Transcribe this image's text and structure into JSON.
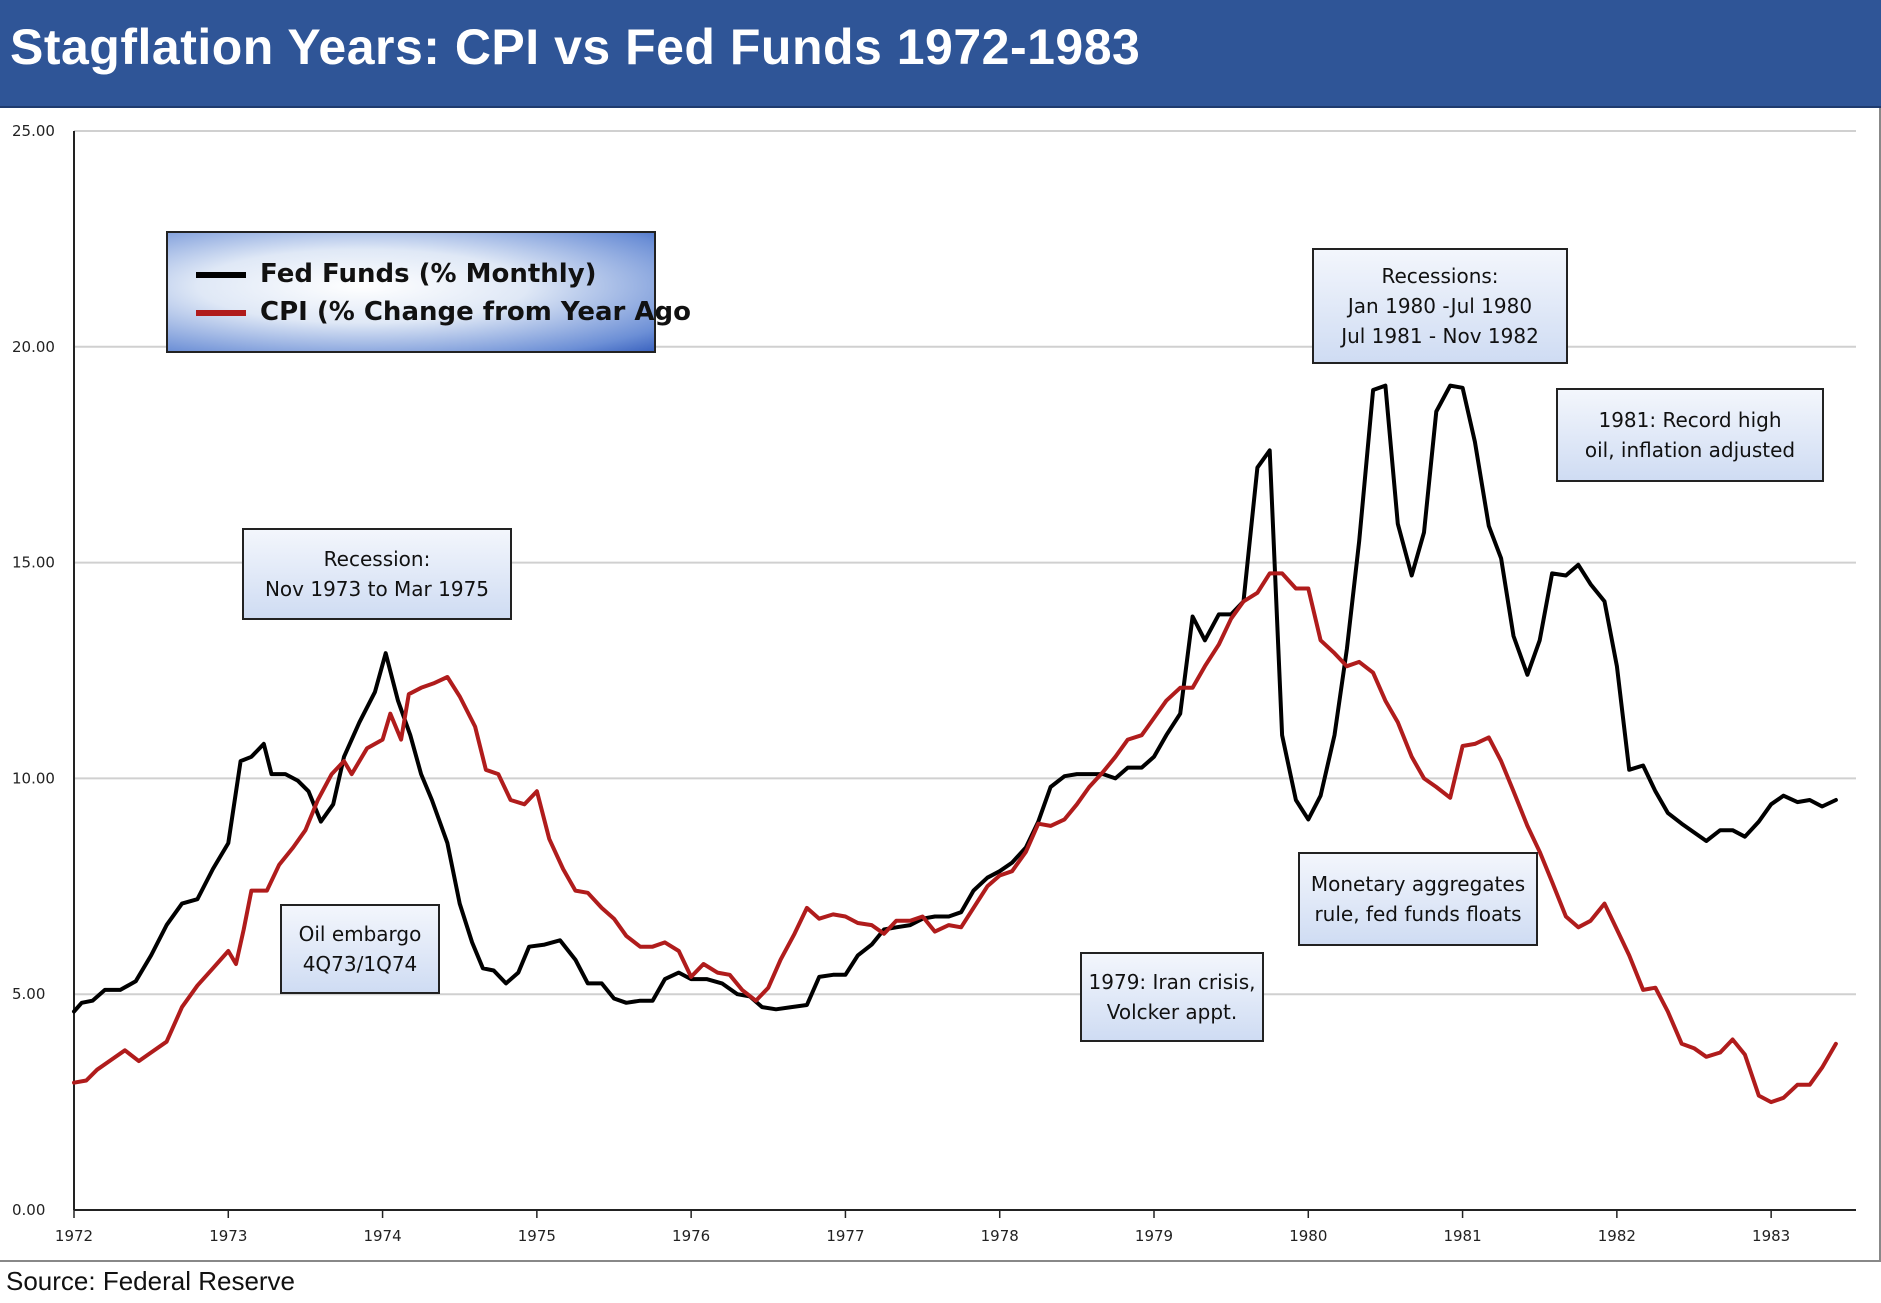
{
  "title": "Stagflation Years: CPI vs Fed Funds 1972-1983",
  "source": "Source: Federal Reserve",
  "colors": {
    "banner": "#2f5597",
    "fed_funds": "#000000",
    "cpi": "#b01c1c",
    "grid": "#d0d0d0"
  },
  "legend": {
    "fed_funds_label": "Fed Funds (% Monthly)",
    "cpi_label": "CPI (% Change from Year Ago"
  },
  "annotations": {
    "recession_1973": [
      "Recession:",
      "Nov 1973 to Mar 1975"
    ],
    "oil_embargo": [
      "Oil embargo",
      "4Q73/1Q74"
    ],
    "iran_crisis": [
      "1979: Iran crisis,",
      "Volcker appt."
    ],
    "recessions_1980": [
      "Recessions:",
      "Jan 1980 -Jul 1980",
      "Jul 1981 - Nov 1982"
    ],
    "record_oil": [
      "1981: Record high",
      "oil, inflation adjusted"
    ],
    "monetary": [
      "Monetary aggregates",
      "rule, fed funds floats"
    ]
  },
  "chart_data": {
    "type": "line",
    "ylim": [
      0,
      25
    ],
    "xlim": [
      1972,
      1983.55
    ],
    "y_ticks": [
      "0.00",
      "5.00",
      "10.00",
      "15.00",
      "20.00",
      "25.00"
    ],
    "x_ticks": [
      "1972",
      "1973",
      "1974",
      "1975",
      "1976",
      "1977",
      "1978",
      "1979",
      "1980",
      "1981",
      "1982",
      "1983"
    ],
    "grid": "horizontal",
    "legend_position": "top-left",
    "series": [
      {
        "name": "Fed Funds (% Monthly)",
        "color": "#000000",
        "points": [
          [
            1972.0,
            4.6
          ],
          [
            1972.05,
            4.8
          ],
          [
            1972.12,
            4.85
          ],
          [
            1972.2,
            5.1
          ],
          [
            1972.3,
            5.1
          ],
          [
            1972.4,
            5.3
          ],
          [
            1972.5,
            5.9
          ],
          [
            1972.6,
            6.6
          ],
          [
            1972.7,
            7.1
          ],
          [
            1972.8,
            7.2
          ],
          [
            1972.9,
            7.9
          ],
          [
            1973.0,
            8.5
          ],
          [
            1973.08,
            10.4
          ],
          [
            1973.15,
            10.5
          ],
          [
            1973.23,
            10.8
          ],
          [
            1973.28,
            10.1
          ],
          [
            1973.37,
            10.1
          ],
          [
            1973.45,
            9.95
          ],
          [
            1973.52,
            9.7
          ],
          [
            1973.6,
            9.0
          ],
          [
            1973.68,
            9.4
          ],
          [
            1973.75,
            10.5
          ],
          [
            1973.85,
            11.3
          ],
          [
            1973.95,
            12.0
          ],
          [
            1974.02,
            12.9
          ],
          [
            1974.1,
            11.8
          ],
          [
            1974.18,
            11.0
          ],
          [
            1974.25,
            10.1
          ],
          [
            1974.32,
            9.5
          ],
          [
            1974.42,
            8.5
          ],
          [
            1974.5,
            7.1
          ],
          [
            1974.58,
            6.2
          ],
          [
            1974.65,
            5.6
          ],
          [
            1974.72,
            5.55
          ],
          [
            1974.8,
            5.25
          ],
          [
            1974.88,
            5.5
          ],
          [
            1974.95,
            6.1
          ],
          [
            1975.05,
            6.15
          ],
          [
            1975.15,
            6.25
          ],
          [
            1975.25,
            5.8
          ],
          [
            1975.33,
            5.25
          ],
          [
            1975.42,
            5.25
          ],
          [
            1975.5,
            4.9
          ],
          [
            1975.58,
            4.8
          ],
          [
            1975.67,
            4.85
          ],
          [
            1975.75,
            4.85
          ],
          [
            1975.83,
            5.35
          ],
          [
            1975.92,
            5.5
          ],
          [
            1976.0,
            5.35
          ],
          [
            1976.1,
            5.35
          ],
          [
            1976.2,
            5.25
          ],
          [
            1976.3,
            5.0
          ],
          [
            1976.38,
            4.95
          ],
          [
            1976.46,
            4.7
          ],
          [
            1976.55,
            4.65
          ],
          [
            1976.65,
            4.7
          ],
          [
            1976.75,
            4.75
          ],
          [
            1976.83,
            5.4
          ],
          [
            1976.92,
            5.45
          ],
          [
            1977.0,
            5.45
          ],
          [
            1977.08,
            5.9
          ],
          [
            1977.17,
            6.15
          ],
          [
            1977.25,
            6.5
          ],
          [
            1977.33,
            6.55
          ],
          [
            1977.42,
            6.6
          ],
          [
            1977.5,
            6.75
          ],
          [
            1977.58,
            6.8
          ],
          [
            1977.67,
            6.8
          ],
          [
            1977.75,
            6.9
          ],
          [
            1977.83,
            7.4
          ],
          [
            1977.92,
            7.7
          ],
          [
            1978.0,
            7.85
          ],
          [
            1978.08,
            8.05
          ],
          [
            1978.17,
            8.4
          ],
          [
            1978.25,
            9.0
          ],
          [
            1978.33,
            9.8
          ],
          [
            1978.42,
            10.05
          ],
          [
            1978.5,
            10.1
          ],
          [
            1978.58,
            10.1
          ],
          [
            1978.67,
            10.1
          ],
          [
            1978.75,
            10.0
          ],
          [
            1978.83,
            10.25
          ],
          [
            1978.92,
            10.25
          ],
          [
            1979.0,
            10.5
          ],
          [
            1979.08,
            11.0
          ],
          [
            1979.17,
            11.5
          ],
          [
            1979.25,
            13.75
          ],
          [
            1979.33,
            13.2
          ],
          [
            1979.42,
            13.8
          ],
          [
            1979.5,
            13.8
          ],
          [
            1979.58,
            14.1
          ],
          [
            1979.67,
            17.2
          ],
          [
            1979.75,
            17.6
          ],
          [
            1979.83,
            11.0
          ],
          [
            1979.92,
            9.5
          ],
          [
            1980.0,
            9.05
          ],
          [
            1980.08,
            9.6
          ],
          [
            1980.17,
            11.0
          ],
          [
            1980.25,
            13.0
          ],
          [
            1980.33,
            15.5
          ],
          [
            1980.42,
            19.0
          ],
          [
            1980.5,
            19.1
          ],
          [
            1980.58,
            15.9
          ],
          [
            1980.67,
            14.7
          ],
          [
            1980.75,
            15.7
          ],
          [
            1980.83,
            18.5
          ],
          [
            1980.92,
            19.1
          ],
          [
            1981.0,
            19.05
          ],
          [
            1981.08,
            17.8
          ],
          [
            1981.17,
            15.85
          ],
          [
            1981.25,
            15.1
          ],
          [
            1981.33,
            13.3
          ],
          [
            1981.42,
            12.4
          ],
          [
            1981.5,
            13.2
          ],
          [
            1981.58,
            14.75
          ],
          [
            1981.67,
            14.7
          ],
          [
            1981.75,
            14.95
          ],
          [
            1981.83,
            14.5
          ],
          [
            1981.92,
            14.1
          ],
          [
            1982.0,
            12.6
          ],
          [
            1982.08,
            10.2
          ],
          [
            1982.17,
            10.3
          ],
          [
            1982.25,
            9.7
          ],
          [
            1982.33,
            9.2
          ],
          [
            1982.42,
            8.95
          ],
          [
            1982.5,
            8.75
          ],
          [
            1982.58,
            8.55
          ],
          [
            1982.67,
            8.8
          ],
          [
            1982.75,
            8.8
          ],
          [
            1982.83,
            8.65
          ],
          [
            1982.92,
            9.0
          ],
          [
            1983.0,
            9.4
          ],
          [
            1983.08,
            9.6
          ],
          [
            1983.17,
            9.45
          ],
          [
            1983.25,
            9.5
          ],
          [
            1983.33,
            9.35
          ],
          [
            1983.42,
            9.5
          ]
        ]
      },
      {
        "name": "CPI (% Change from Year Ago",
        "color": "#b01c1c",
        "points": [
          [
            1972.0,
            2.95
          ],
          [
            1972.08,
            3.0
          ],
          [
            1972.15,
            3.25
          ],
          [
            1972.25,
            3.5
          ],
          [
            1972.33,
            3.7
          ],
          [
            1972.42,
            3.45
          ],
          [
            1972.5,
            3.65
          ],
          [
            1972.6,
            3.9
          ],
          [
            1972.7,
            4.7
          ],
          [
            1972.8,
            5.2
          ],
          [
            1972.9,
            5.6
          ],
          [
            1973.0,
            6.0
          ],
          [
            1973.05,
            5.7
          ],
          [
            1973.1,
            6.5
          ],
          [
            1973.15,
            7.4
          ],
          [
            1973.25,
            7.4
          ],
          [
            1973.33,
            8.0
          ],
          [
            1973.42,
            8.4
          ],
          [
            1973.5,
            8.8
          ],
          [
            1973.58,
            9.5
          ],
          [
            1973.67,
            10.1
          ],
          [
            1973.75,
            10.4
          ],
          [
            1973.8,
            10.1
          ],
          [
            1973.9,
            10.7
          ],
          [
            1974.0,
            10.9
          ],
          [
            1974.05,
            11.5
          ],
          [
            1974.12,
            10.9
          ],
          [
            1974.17,
            11.95
          ],
          [
            1974.25,
            12.1
          ],
          [
            1974.33,
            12.2
          ],
          [
            1974.42,
            12.35
          ],
          [
            1974.5,
            11.9
          ],
          [
            1974.6,
            11.2
          ],
          [
            1974.67,
            10.2
          ],
          [
            1974.75,
            10.1
          ],
          [
            1974.83,
            9.5
          ],
          [
            1974.92,
            9.4
          ],
          [
            1975.0,
            9.7
          ],
          [
            1975.08,
            8.6
          ],
          [
            1975.17,
            7.9
          ],
          [
            1975.25,
            7.4
          ],
          [
            1975.33,
            7.35
          ],
          [
            1975.42,
            7.0
          ],
          [
            1975.5,
            6.75
          ],
          [
            1975.58,
            6.35
          ],
          [
            1975.67,
            6.1
          ],
          [
            1975.75,
            6.1
          ],
          [
            1975.83,
            6.2
          ],
          [
            1975.92,
            6.0
          ],
          [
            1976.0,
            5.4
          ],
          [
            1976.08,
            5.7
          ],
          [
            1976.17,
            5.5
          ],
          [
            1976.25,
            5.45
          ],
          [
            1976.33,
            5.1
          ],
          [
            1976.42,
            4.85
          ],
          [
            1976.5,
            5.15
          ],
          [
            1976.58,
            5.8
          ],
          [
            1976.67,
            6.4
          ],
          [
            1976.75,
            7.0
          ],
          [
            1976.83,
            6.75
          ],
          [
            1976.92,
            6.85
          ],
          [
            1977.0,
            6.8
          ],
          [
            1977.08,
            6.65
          ],
          [
            1977.17,
            6.6
          ],
          [
            1977.25,
            6.4
          ],
          [
            1977.33,
            6.7
          ],
          [
            1977.42,
            6.7
          ],
          [
            1977.5,
            6.8
          ],
          [
            1977.58,
            6.45
          ],
          [
            1977.67,
            6.6
          ],
          [
            1977.75,
            6.55
          ],
          [
            1977.83,
            7.0
          ],
          [
            1977.92,
            7.5
          ],
          [
            1978.0,
            7.75
          ],
          [
            1978.08,
            7.85
          ],
          [
            1978.17,
            8.3
          ],
          [
            1978.25,
            8.95
          ],
          [
            1978.33,
            8.9
          ],
          [
            1978.42,
            9.05
          ],
          [
            1978.5,
            9.4
          ],
          [
            1978.58,
            9.8
          ],
          [
            1978.67,
            10.15
          ],
          [
            1978.75,
            10.5
          ],
          [
            1978.83,
            10.9
          ],
          [
            1978.92,
            11.0
          ],
          [
            1979.0,
            11.4
          ],
          [
            1979.08,
            11.8
          ],
          [
            1979.17,
            12.1
          ],
          [
            1979.25,
            12.1
          ],
          [
            1979.33,
            12.6
          ],
          [
            1979.42,
            13.1
          ],
          [
            1979.5,
            13.7
          ],
          [
            1979.58,
            14.1
          ],
          [
            1979.67,
            14.3
          ],
          [
            1979.75,
            14.75
          ],
          [
            1979.83,
            14.75
          ],
          [
            1979.92,
            14.4
          ],
          [
            1980.0,
            14.4
          ],
          [
            1980.08,
            13.2
          ],
          [
            1980.17,
            12.9
          ],
          [
            1980.25,
            12.6
          ],
          [
            1980.33,
            12.7
          ],
          [
            1980.42,
            12.45
          ],
          [
            1980.5,
            11.8
          ],
          [
            1980.58,
            11.3
          ],
          [
            1980.67,
            10.5
          ],
          [
            1980.75,
            10.0
          ],
          [
            1980.83,
            9.8
          ],
          [
            1980.92,
            9.55
          ],
          [
            1981.0,
            10.75
          ],
          [
            1981.08,
            10.8
          ],
          [
            1981.17,
            10.95
          ],
          [
            1981.25,
            10.4
          ],
          [
            1981.33,
            9.7
          ],
          [
            1981.42,
            8.9
          ],
          [
            1981.5,
            8.3
          ],
          [
            1981.58,
            7.6
          ],
          [
            1981.67,
            6.8
          ],
          [
            1981.75,
            6.55
          ],
          [
            1981.83,
            6.7
          ],
          [
            1981.92,
            7.1
          ],
          [
            1982.0,
            6.5
          ],
          [
            1982.08,
            5.9
          ],
          [
            1982.17,
            5.1
          ],
          [
            1982.25,
            5.15
          ],
          [
            1982.33,
            4.6
          ],
          [
            1982.42,
            3.85
          ],
          [
            1982.5,
            3.75
          ],
          [
            1982.58,
            3.55
          ],
          [
            1982.67,
            3.65
          ],
          [
            1982.75,
            3.95
          ],
          [
            1982.83,
            3.6
          ],
          [
            1982.92,
            2.65
          ],
          [
            1983.0,
            2.5
          ],
          [
            1983.08,
            2.6
          ],
          [
            1983.17,
            2.9
          ],
          [
            1983.25,
            2.9
          ],
          [
            1983.33,
            3.3
          ],
          [
            1983.42,
            3.85
          ]
        ]
      }
    ]
  }
}
